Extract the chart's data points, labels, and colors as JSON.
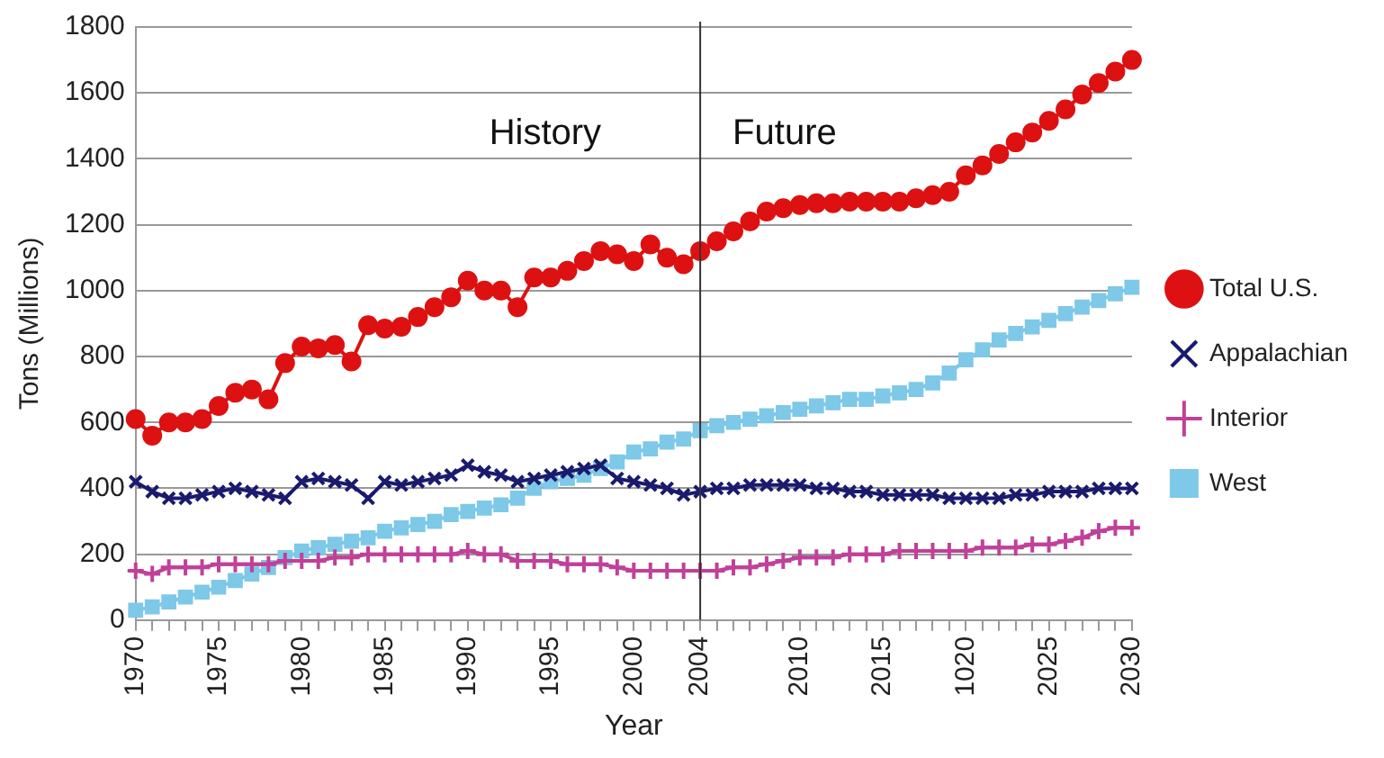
{
  "chart_data": {
    "type": "line",
    "xlabel": "Year",
    "ylabel": "Tons (Millions)",
    "categories": [
      "1970",
      null,
      null,
      null,
      null,
      "1975",
      null,
      null,
      null,
      null,
      "1980",
      null,
      null,
      null,
      null,
      "1985",
      null,
      null,
      null,
      null,
      "1990",
      null,
      null,
      null,
      null,
      "1995",
      null,
      null,
      null,
      null,
      "2000",
      null,
      null,
      null,
      "2004",
      null,
      null,
      null,
      null,
      null,
      "2010",
      null,
      null,
      null,
      null,
      "2015",
      null,
      null,
      null,
      null,
      "1020",
      null,
      null,
      null,
      null,
      "2025",
      null,
      null,
      null,
      null,
      "2030"
    ],
    "series": [
      {
        "name": "Total U.S.",
        "color": "#dd1111",
        "marker": "circle",
        "values": [
          610,
          560,
          600,
          600,
          610,
          650,
          690,
          700,
          670,
          780,
          830,
          825,
          835,
          785,
          895,
          885,
          890,
          920,
          950,
          980,
          1030,
          1000,
          1000,
          950,
          1040,
          1040,
          1060,
          1090,
          1120,
          1110,
          1090,
          1140,
          1100,
          1080,
          1120,
          1150,
          1180,
          1210,
          1240,
          1250,
          1260,
          1265,
          1265,
          1270,
          1270,
          1270,
          1270,
          1280,
          1290,
          1300,
          1350,
          1380,
          1415,
          1450,
          1480,
          1515,
          1550,
          1595,
          1630,
          1665,
          1700
        ]
      },
      {
        "name": "Appalachian",
        "color": "#1a1a6e",
        "marker": "cross",
        "values": [
          420,
          390,
          370,
          370,
          380,
          390,
          400,
          390,
          380,
          370,
          420,
          430,
          420,
          410,
          370,
          420,
          410,
          420,
          430,
          440,
          470,
          450,
          440,
          420,
          430,
          440,
          450,
          460,
          470,
          430,
          420,
          410,
          400,
          380,
          390,
          400,
          400,
          410,
          410,
          410,
          410,
          400,
          400,
          390,
          390,
          380,
          380,
          380,
          380,
          370,
          370,
          370,
          370,
          380,
          380,
          390,
          390,
          390,
          400,
          400,
          400
        ]
      },
      {
        "name": "Interior",
        "color": "#c0409a",
        "marker": "plus",
        "values": [
          150,
          140,
          160,
          160,
          160,
          170,
          170,
          170,
          170,
          180,
          180,
          180,
          190,
          190,
          200,
          200,
          200,
          200,
          200,
          200,
          210,
          200,
          200,
          180,
          180,
          180,
          170,
          170,
          170,
          160,
          150,
          150,
          150,
          150,
          150,
          150,
          160,
          160,
          170,
          180,
          190,
          190,
          190,
          200,
          200,
          200,
          210,
          210,
          210,
          210,
          210,
          220,
          220,
          220,
          230,
          230,
          240,
          250,
          270,
          280,
          280
        ]
      },
      {
        "name": "West",
        "color": "#7ec8e8",
        "marker": "square",
        "values": [
          30,
          40,
          55,
          70,
          85,
          100,
          120,
          140,
          160,
          190,
          210,
          220,
          230,
          240,
          250,
          270,
          280,
          290,
          300,
          320,
          330,
          340,
          350,
          370,
          400,
          420,
          430,
          440,
          460,
          480,
          510,
          520,
          540,
          550,
          575,
          590,
          600,
          610,
          620,
          630,
          640,
          650,
          660,
          670,
          670,
          680,
          690,
          700,
          720,
          750,
          790,
          820,
          850,
          870,
          890,
          910,
          930,
          950,
          970,
          990,
          1010
        ]
      }
    ],
    "ylim": [
      0,
      1800
    ],
    "yticks": [
      0,
      200,
      400,
      600,
      800,
      1000,
      1200,
      1400,
      1600,
      1800
    ],
    "grid": "y",
    "legend": "right",
    "ref_lines": [
      {
        "axis": "x",
        "value": "2004",
        "color": "#333333"
      }
    ],
    "annotations": [
      "History",
      "Future"
    ]
  }
}
